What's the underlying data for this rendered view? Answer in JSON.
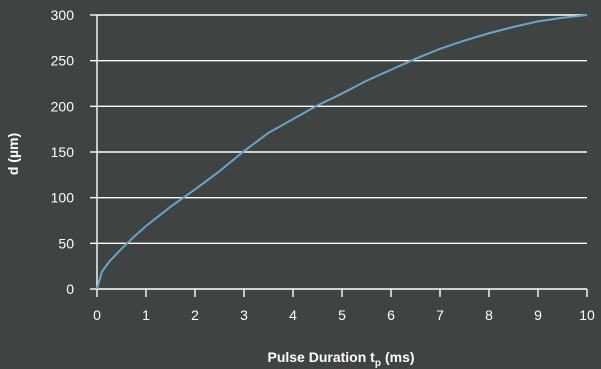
{
  "chart_data": {
    "type": "line",
    "title": "",
    "xlabel": "Pulse Duration t",
    "xlabel_subscript": "p",
    "xlabel_unit": "(ms)",
    "ylabel": "d (µm)",
    "xlim": [
      0,
      10
    ],
    "ylim": [
      0,
      300
    ],
    "xticks": [
      "0",
      "1",
      "2",
      "3",
      "4",
      "5",
      "6",
      "7",
      "8",
      "9",
      "10"
    ],
    "yticks": [
      "0",
      "50",
      "100",
      "150",
      "200",
      "250",
      "300"
    ],
    "grid": "horizontal",
    "series": [
      {
        "color": "#6aa2c8",
        "x": [
          0,
          0.1,
          0.25,
          0.5,
          0.75,
          1,
          1.5,
          2,
          2.5,
          3,
          3.5,
          4,
          4.5,
          5,
          5.5,
          6,
          6.5,
          7,
          7.5,
          8,
          8.5,
          9,
          9.5,
          10
        ],
        "y": [
          0,
          19,
          30,
          44,
          57,
          69,
          90,
          109,
          129,
          151,
          171,
          186,
          201,
          214,
          228,
          240,
          252,
          263,
          272,
          280,
          287,
          293,
          297,
          300
        ]
      }
    ]
  },
  "colors": {
    "background": "#3f4442",
    "axis": "#ffffff",
    "series": "#6aa2c8"
  }
}
